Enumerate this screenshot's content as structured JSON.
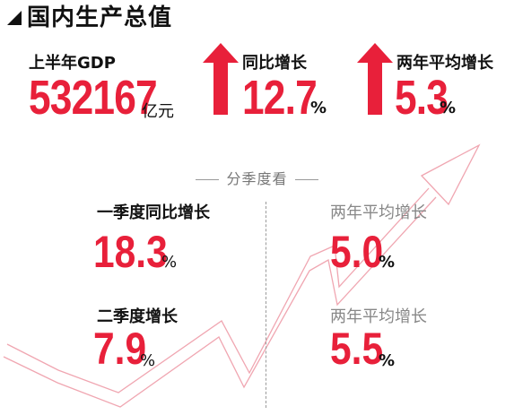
{
  "header": {
    "title": "国内生产总值"
  },
  "top_metrics": {
    "gdp": {
      "label": "上半年GDP",
      "value": "532167",
      "unit": "亿元"
    },
    "yoy": {
      "label": "同比增长",
      "value": "12.7",
      "unit": "%"
    },
    "two_year": {
      "label": "两年平均增长",
      "value": "5.3",
      "unit": "%"
    }
  },
  "section": {
    "title": "分季度看"
  },
  "quarters": {
    "q1_yoy": {
      "label": "一季度同比增长",
      "value": "18.3",
      "unit": "%"
    },
    "q1_two_year": {
      "label": "两年平均增长",
      "value": "5.0",
      "unit": "%"
    },
    "q2_growth": {
      "label": "二季度增长",
      "value": "7.9",
      "unit": "%"
    },
    "q2_two_year": {
      "label": "两年平均增长",
      "value": "5.5",
      "unit": "%"
    }
  },
  "colors": {
    "accent": "#e8203a",
    "text": "#111111",
    "muted": "#888888"
  },
  "icons": {
    "title_marker": "triangle-icon",
    "up_arrow": "arrow-up-icon",
    "trend_arrow": "trend-arrow-icon"
  }
}
